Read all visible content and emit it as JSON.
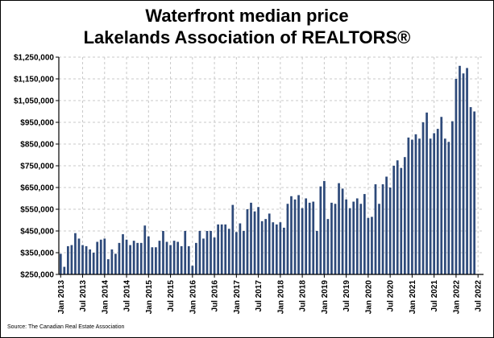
{
  "chart_data": {
    "type": "bar",
    "title": "Waterfront median price",
    "subtitle": "Lakelands Association of REALTORS®",
    "source": "Source: The Canadian Real Estate Association",
    "xlabel": "",
    "ylabel": "",
    "ylim": [
      250000,
      1250000
    ],
    "yticks": [
      250000,
      350000,
      450000,
      550000,
      650000,
      750000,
      850000,
      950000,
      1050000,
      1150000,
      1250000
    ],
    "ytick_labels": [
      "$250,000",
      "$350,000",
      "$450,000",
      "$550,000",
      "$650,000",
      "$750,000",
      "$850,000",
      "$950,000",
      "$1,050,000",
      "$1,150,000",
      "$1,250,000"
    ],
    "xtick_labels": [
      "Jan 2013",
      "Jul 2013",
      "Jan 2014",
      "Jul 2014",
      "Jan 2015",
      "Jul 2015",
      "Jan 2016",
      "Jul 2016",
      "Jan 2017",
      "Jul 2017",
      "Jan 2018",
      "Jul 2018",
      "Jan 2019",
      "Jul 2019",
      "Jan 2020",
      "Jul 2020",
      "Jan 2021",
      "Jul 2021",
      "Jan 2022",
      "Jul 2022"
    ],
    "grid": true,
    "bar_color": "#2e4a7a",
    "start_month": "Jan 2013",
    "values": [
      345000,
      285000,
      380000,
      385000,
      440000,
      415000,
      385000,
      380000,
      365000,
      350000,
      400000,
      410000,
      415000,
      320000,
      365000,
      345000,
      395000,
      435000,
      410000,
      385000,
      405000,
      395000,
      395000,
      475000,
      425000,
      375000,
      375000,
      405000,
      450000,
      400000,
      385000,
      405000,
      400000,
      380000,
      450000,
      380000,
      290000,
      395000,
      450000,
      415000,
      450000,
      450000,
      420000,
      480000,
      480000,
      480000,
      460000,
      570000,
      445000,
      485000,
      450000,
      550000,
      580000,
      540000,
      560000,
      495000,
      505000,
      530000,
      490000,
      480000,
      490000,
      465000,
      575000,
      610000,
      595000,
      615000,
      555000,
      600000,
      580000,
      585000,
      450000,
      655000,
      680000,
      505000,
      580000,
      575000,
      670000,
      645000,
      595000,
      555000,
      585000,
      600000,
      575000,
      620000,
      510000,
      515000,
      665000,
      575000,
      665000,
      700000,
      650000,
      750000,
      775000,
      740000,
      790000,
      880000,
      870000,
      895000,
      875000,
      950000,
      995000,
      875000,
      900000,
      920000,
      975000,
      875000,
      860000,
      955000,
      1150000,
      1210000,
      1175000,
      1200000,
      1020000,
      1000000
    ]
  }
}
